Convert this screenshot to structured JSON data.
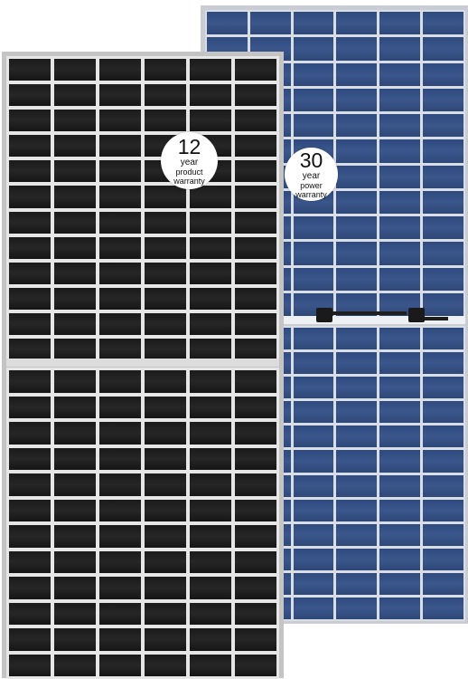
{
  "badges": {
    "product": {
      "number": "12",
      "unit": "year",
      "label": "product warranty"
    },
    "power": {
      "number": "30",
      "unit": "year",
      "label": "power warranty"
    }
  },
  "panels": {
    "front": {
      "color": "#1b1b1b",
      "frame_color": "#c4c4c4",
      "columns": 6,
      "rows_per_half": 12
    },
    "back": {
      "color": "#2f4a7e",
      "frame_color": "#c9ccd3",
      "columns": 6,
      "rows_per_half": 12
    }
  }
}
